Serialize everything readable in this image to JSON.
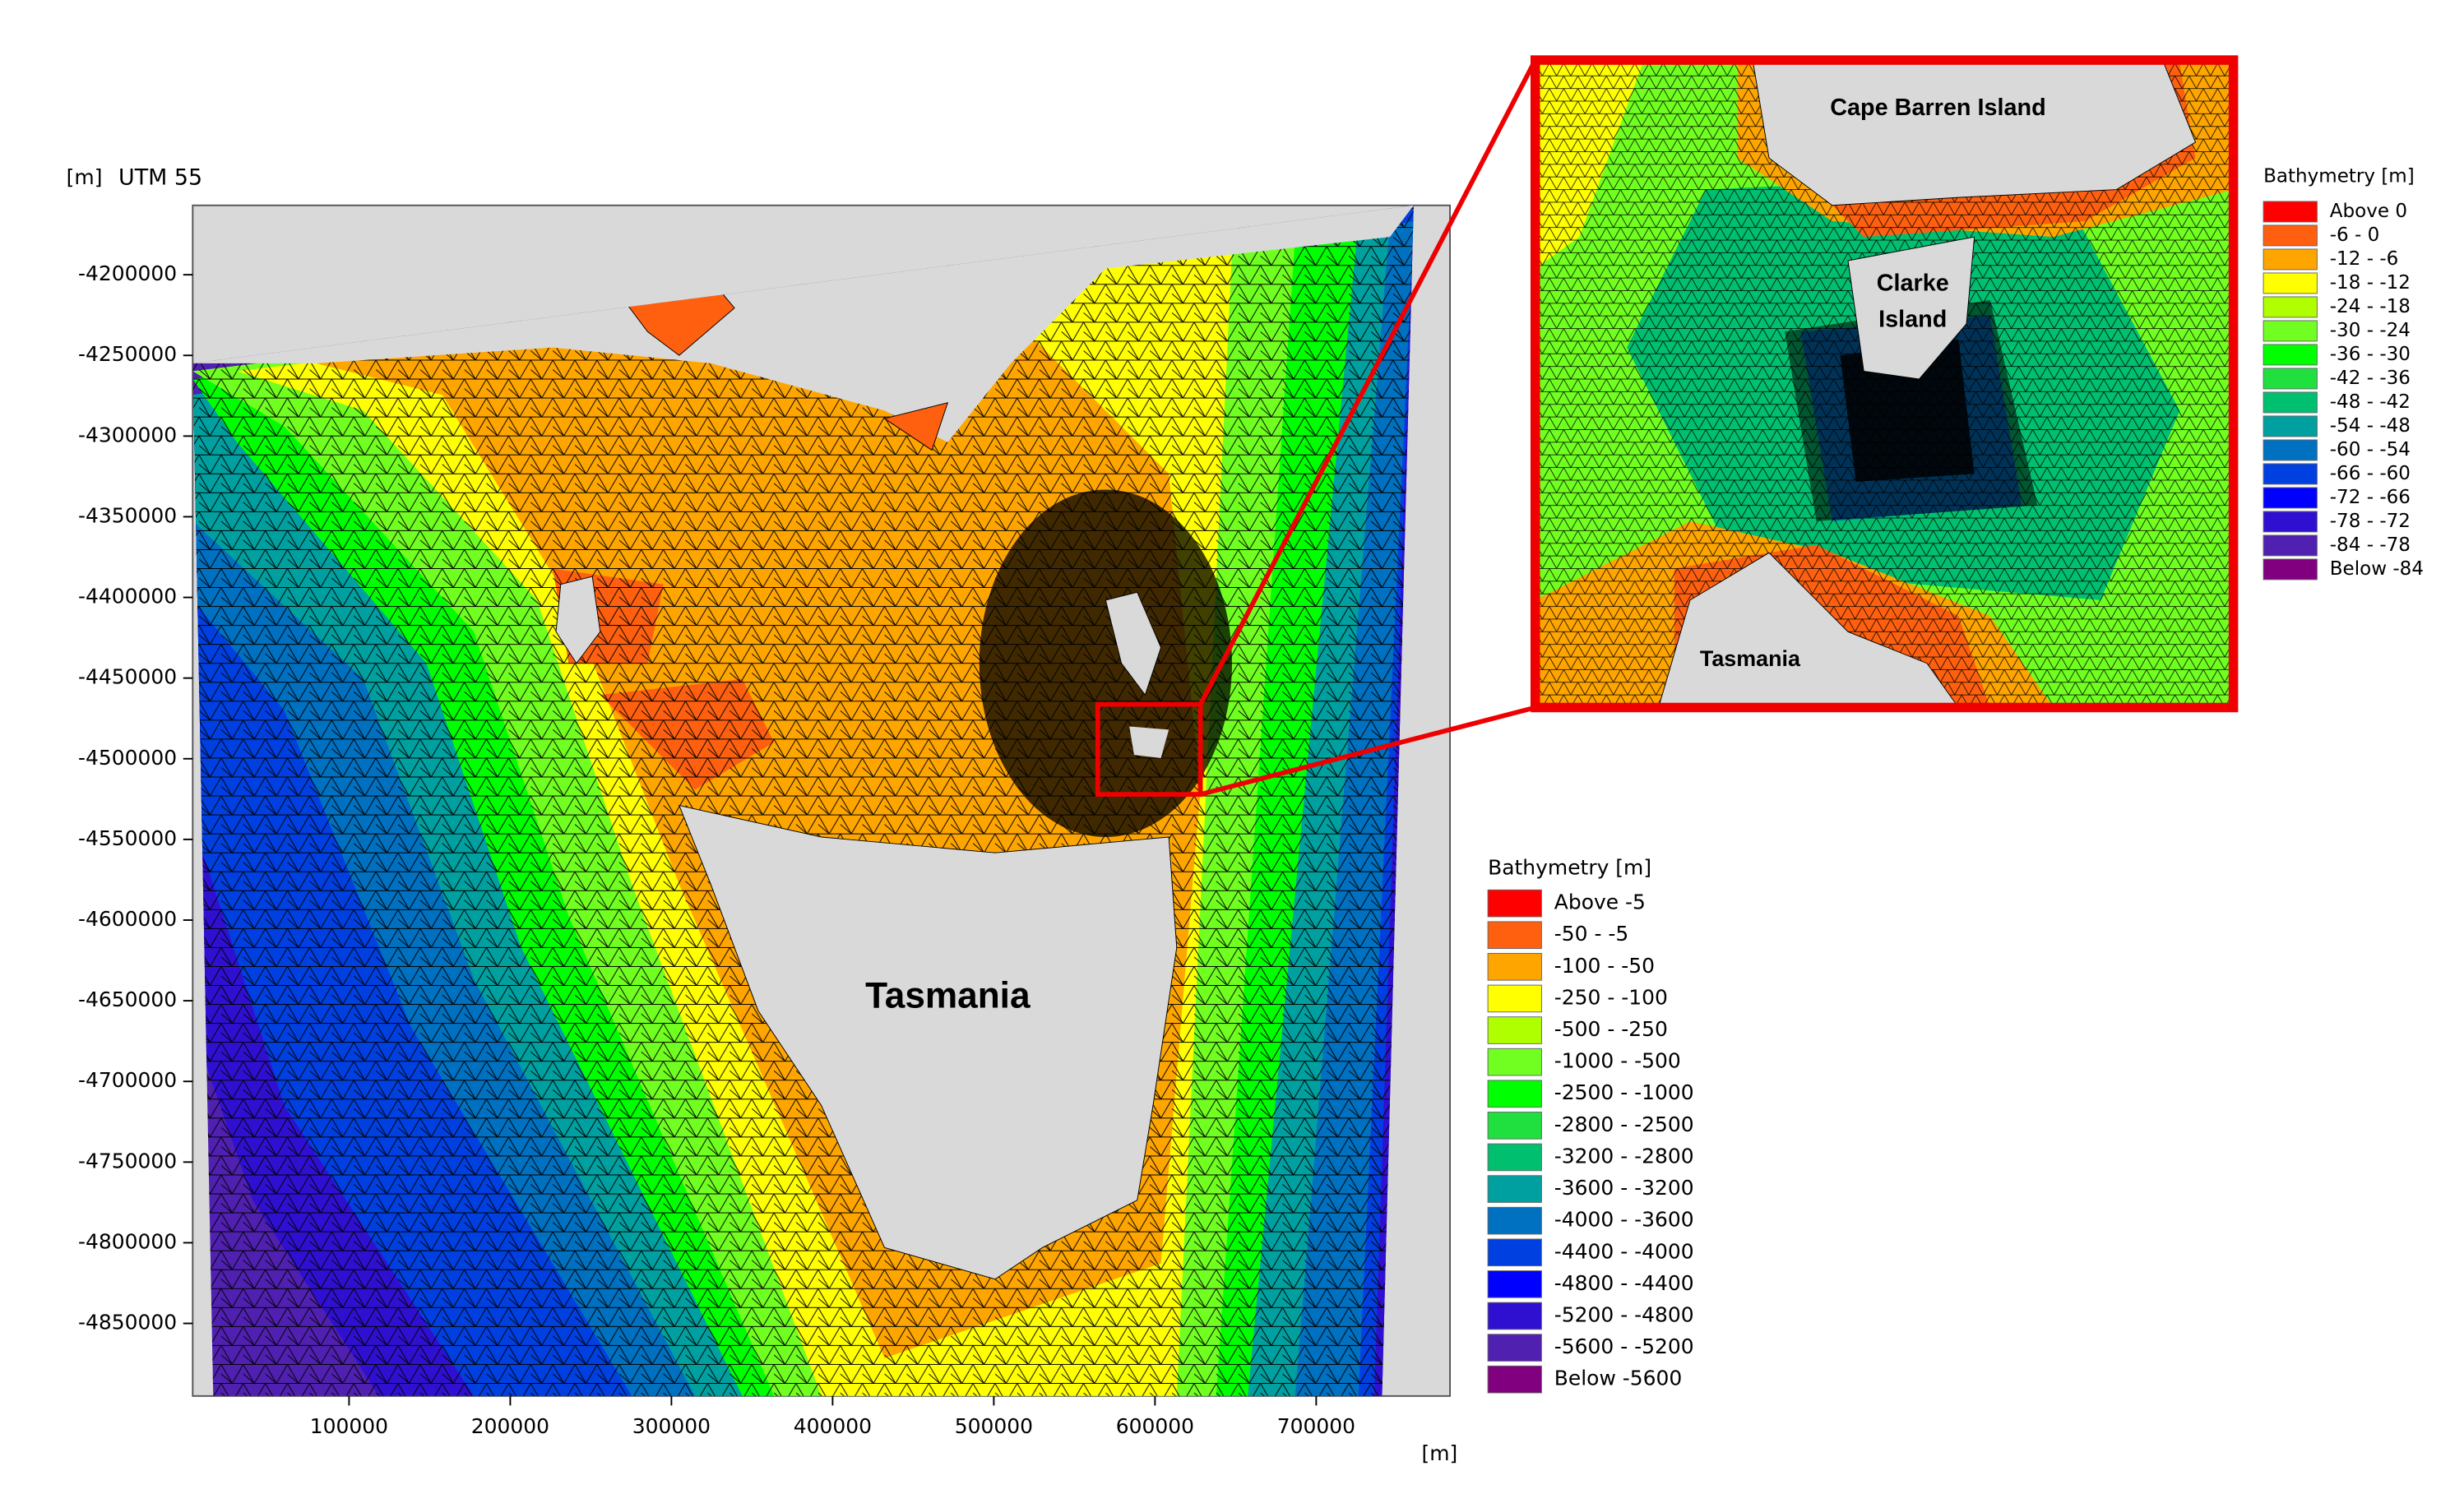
{
  "main_map": {
    "y_unit": "[m]",
    "crs": "UTM 55",
    "x_unit": "[m]",
    "label": "Tasmania",
    "xlim": [
      3000,
      783000
    ],
    "ylim": [
      -4895000,
      -4157000
    ],
    "xticks": [
      100000,
      200000,
      300000,
      400000,
      500000,
      600000,
      700000
    ],
    "yticks": [
      -4200000,
      -4250000,
      -4300000,
      -4350000,
      -4400000,
      -4450000,
      -4500000,
      -4550000,
      -4600000,
      -4650000,
      -4700000,
      -4750000,
      -4800000,
      -4850000
    ]
  },
  "main_legend": {
    "title": "Bathymetry [m]",
    "entries": [
      {
        "label": "Above -5",
        "color": "#ff0000"
      },
      {
        "label": "-50 - -5",
        "color": "#ff6010"
      },
      {
        "label": "-100 - -50",
        "color": "#ffa500"
      },
      {
        "label": "-250 - -100",
        "color": "#ffff00"
      },
      {
        "label": "-500 - -250",
        "color": "#b0ff00"
      },
      {
        "label": "-1000 - -500",
        "color": "#70ff20"
      },
      {
        "label": "-2500 - -1000",
        "color": "#00ff00"
      },
      {
        "label": "-2800 - -2500",
        "color": "#20e040"
      },
      {
        "label": "-3200 - -2800",
        "color": "#00c070"
      },
      {
        "label": "-3600 - -3200",
        "color": "#00a0a0"
      },
      {
        "label": "-4000 - -3600",
        "color": "#0070c0"
      },
      {
        "label": "-4400 - -4000",
        "color": "#0040e0"
      },
      {
        "label": "-4800 - -4400",
        "color": "#0000ff"
      },
      {
        "label": "-5200 - -4800",
        "color": "#3010d0"
      },
      {
        "label": "-5600 - -5200",
        "color": "#5020b0"
      },
      {
        "label": "Below -5600",
        "color": "#800080"
      }
    ]
  },
  "inset": {
    "cape_barren": "Cape Barren Island",
    "clarke": [
      "Clarke",
      "Island"
    ],
    "tasmania": "Tasmania"
  },
  "inset_legend": {
    "title": "Bathymetry [m]",
    "entries": [
      {
        "label": "Above 0",
        "color": "#ff0000"
      },
      {
        "label": "-6 - 0",
        "color": "#ff6010"
      },
      {
        "label": "-12 - -6",
        "color": "#ffa500"
      },
      {
        "label": "-18 - -12",
        "color": "#ffff00"
      },
      {
        "label": "-24 - -18",
        "color": "#b0ff00"
      },
      {
        "label": "-30 - -24",
        "color": "#70ff20"
      },
      {
        "label": "-36 - -30",
        "color": "#00ff00"
      },
      {
        "label": "-42 - -36",
        "color": "#20e040"
      },
      {
        "label": "-48 - -42",
        "color": "#00c070"
      },
      {
        "label": "-54 - -48",
        "color": "#00a0a0"
      },
      {
        "label": "-60 - -54",
        "color": "#0070c0"
      },
      {
        "label": "-66 - -60",
        "color": "#0040e0"
      },
      {
        "label": "-72 - -66",
        "color": "#0000ff"
      },
      {
        "label": "-78 - -72",
        "color": "#3010d0"
      },
      {
        "label": "-84 - -78",
        "color": "#5020b0"
      },
      {
        "label": "Below -84",
        "color": "#800080"
      }
    ]
  }
}
